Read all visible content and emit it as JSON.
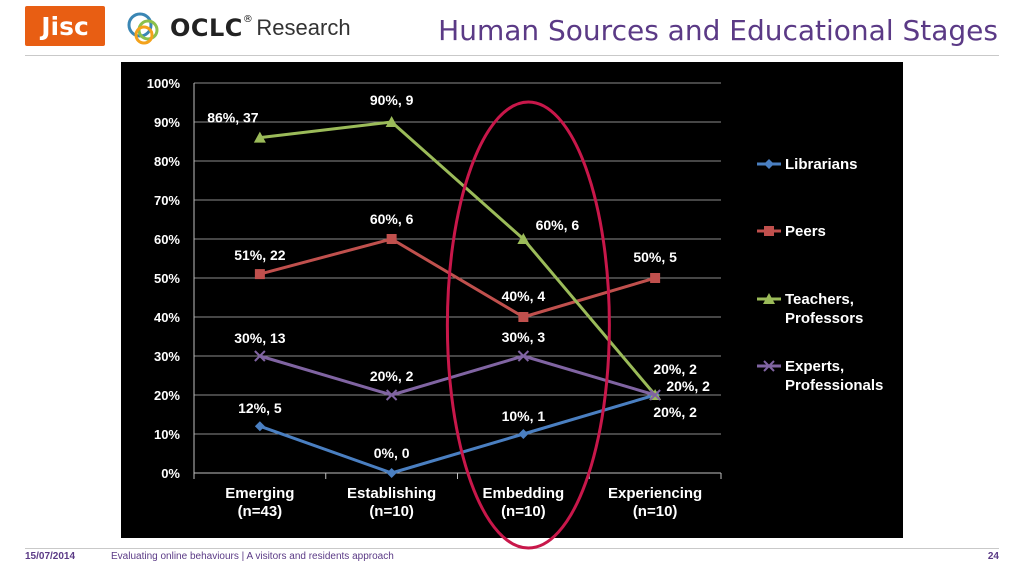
{
  "header": {
    "jisc_logo_text": "Jisc",
    "oclc_logo_text": "OCLC",
    "oclc_logo_mark": "®",
    "oclc_research_text": "Research",
    "title": "Human Sources and Educational Stages"
  },
  "footer": {
    "date": "15/07/2014",
    "text": "Evaluating online behaviours | A visitors and residents approach",
    "page": "24"
  },
  "colors": {
    "title": "#5b3a86",
    "jisc": "#e85e13",
    "highlight_ellipse": "#c8174a"
  },
  "chart_data": {
    "type": "line",
    "title": "",
    "xlabel": "",
    "ylabel": "",
    "ylim": [
      0,
      100
    ],
    "y_ticks": [
      "0%",
      "10%",
      "20%",
      "30%",
      "40%",
      "50%",
      "60%",
      "70%",
      "80%",
      "90%",
      "100%"
    ],
    "grid": true,
    "legend_position": "right",
    "background": "#000000",
    "categories": [
      [
        "Emerging",
        "(n=43)"
      ],
      [
        "Establishing",
        "(n=10)"
      ],
      [
        "Embedding",
        "(n=10)"
      ],
      [
        "Experiencing",
        "(n=10)"
      ]
    ],
    "series": [
      {
        "name": [
          "Librarians"
        ],
        "color": "#4a7fc1",
        "marker": "diamond",
        "values": [
          12,
          0,
          10,
          20
        ],
        "labels": [
          "12%, 5",
          "0%, 0",
          "10%, 1",
          "20%, 2"
        ]
      },
      {
        "name": [
          "Peers"
        ],
        "color": "#c0504d",
        "marker": "square",
        "values": [
          51,
          60,
          40,
          50
        ],
        "labels": [
          "51%, 22",
          "60%, 6",
          "40%, 4",
          "50%, 5"
        ]
      },
      {
        "name": [
          "Teachers,",
          "Professors"
        ],
        "color": "#9bbb59",
        "marker": "triangle",
        "values": [
          86,
          90,
          60,
          20
        ],
        "labels": [
          "86%, 37",
          "90%, 9",
          "60%, 6",
          "20%, 2"
        ]
      },
      {
        "name": [
          "Experts,",
          "Professionals"
        ],
        "color": "#8064a2",
        "marker": "x",
        "values": [
          30,
          20,
          30,
          20
        ],
        "labels": [
          "30%, 13",
          "20%, 2",
          "30%, 3",
          "20%, 2"
        ]
      }
    ],
    "highlight": {
      "category_index": 2,
      "shape": "ellipse"
    }
  }
}
